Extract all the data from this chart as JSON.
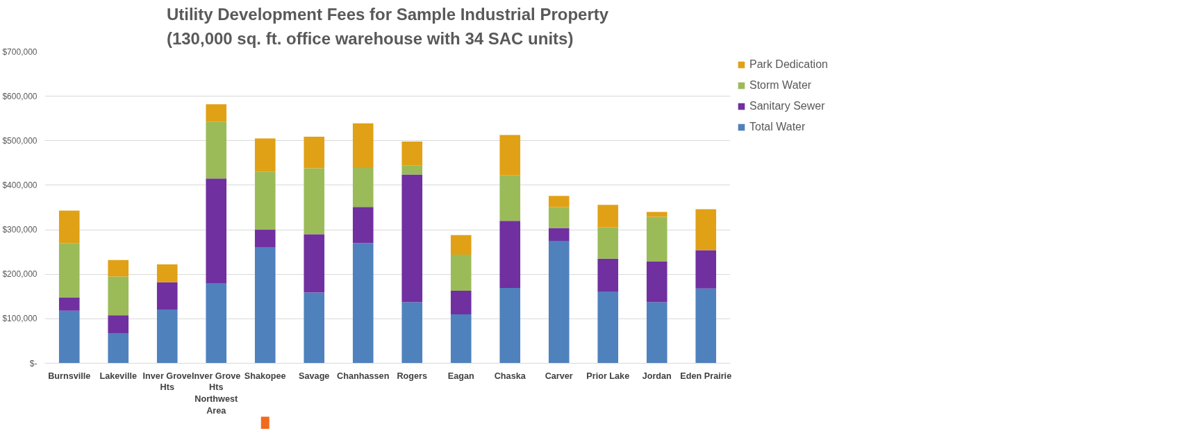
{
  "chart_data": {
    "type": "bar",
    "stacked": true,
    "title": "Utility Development Fees for Sample Industrial Property\n(130,000 sq. ft. office warehouse with 34 SAC units)",
    "categories": [
      "Burnsville",
      "Lakeville",
      "Inver Grove Hts",
      "Inver Grove Hts Northwest Area",
      "Shakopee",
      "Savage",
      "Chanhassen",
      "Rogers",
      "Eagan",
      "Chaska",
      "Carver",
      "Prior Lake",
      "Jordan",
      "Eden Prairie"
    ],
    "series": [
      {
        "name": "Total Water",
        "color": "#4f81bd",
        "values": [
          118000,
          68000,
          121000,
          180000,
          260000,
          159000,
          270000,
          137000,
          110000,
          169000,
          275000,
          160000,
          137000,
          168000
        ]
      },
      {
        "name": "Sanitary Sewer",
        "color": "#7030a0",
        "values": [
          30000,
          40000,
          61000,
          235000,
          40000,
          131000,
          81000,
          287000,
          53000,
          151000,
          29000,
          75000,
          92000,
          86000
        ]
      },
      {
        "name": "Storm Water",
        "color": "#9bbb59",
        "values": [
          122000,
          87000,
          0,
          127000,
          130000,
          148000,
          88000,
          20000,
          81000,
          102000,
          47000,
          70000,
          100000,
          0
        ]
      },
      {
        "name": "Park Dedication",
        "color": "#e0a116",
        "values": [
          73000,
          37000,
          40000,
          40000,
          75000,
          71000,
          100000,
          54000,
          44000,
          91000,
          25000,
          51000,
          11000,
          92000
        ]
      }
    ],
    "ylim": [
      0,
      700000
    ],
    "yticks": [
      {
        "value": 0,
        "label": "$-"
      },
      {
        "value": 100000,
        "label": "$100,000"
      },
      {
        "value": 200000,
        "label": "$200,000"
      },
      {
        "value": 300000,
        "label": "$300,000"
      },
      {
        "value": 400000,
        "label": "$400,000"
      },
      {
        "value": 500000,
        "label": "$500,000"
      },
      {
        "value": 600000,
        "label": "$600,000"
      },
      {
        "value": 700000,
        "label": "$700,000"
      }
    ],
    "grid": "y",
    "legend": "top right"
  }
}
